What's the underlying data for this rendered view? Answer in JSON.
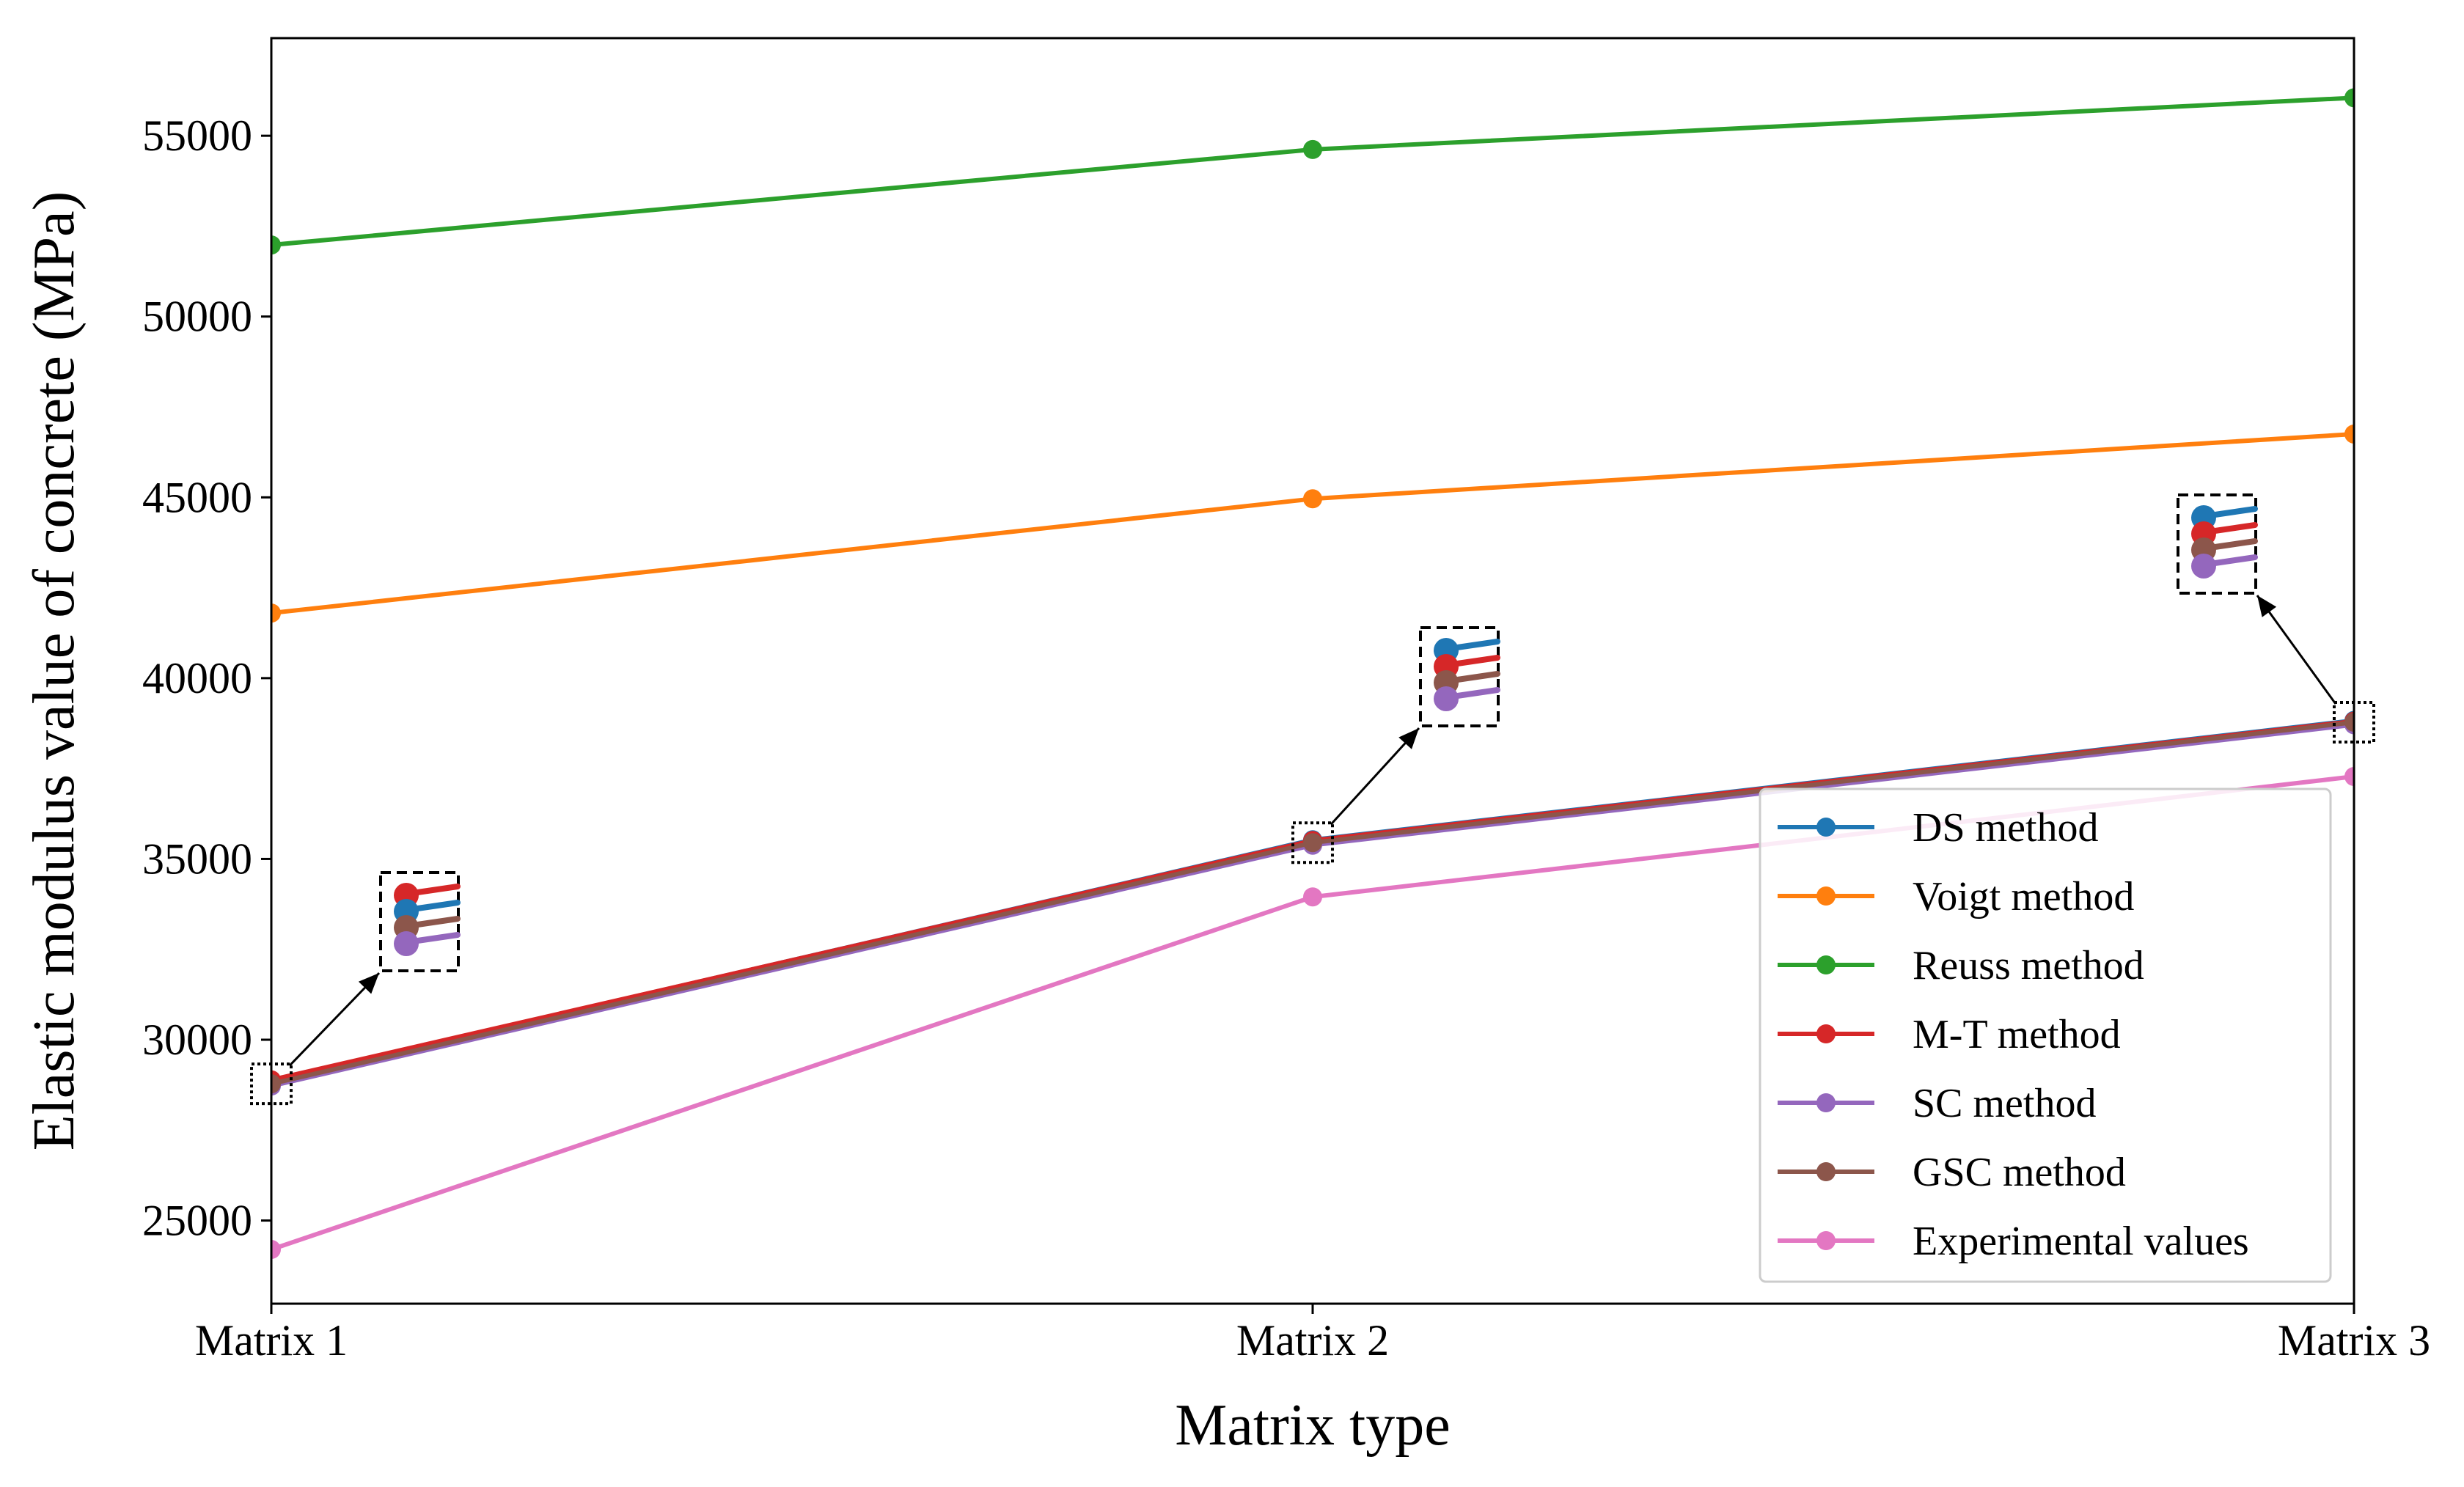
{
  "chart_data": {
    "type": "line",
    "title": "",
    "xlabel": "Matrix type",
    "ylabel": "Elastic modulus value of concrete (MPa)",
    "categories": [
      "Matrix 1",
      "Matrix 2",
      "Matrix 3"
    ],
    "ylim": [
      22700,
      57700
    ],
    "yticks": [
      25000,
      30000,
      35000,
      40000,
      45000,
      50000,
      55000
    ],
    "series": [
      {
        "name": "DS method",
        "color": "#1f77b4",
        "values": [
          28870,
          35530,
          38830
        ]
      },
      {
        "name": "Voigt method",
        "color": "#ff7f0e",
        "values": [
          41800,
          44960,
          46750
        ]
      },
      {
        "name": "Reuss method",
        "color": "#2ca02c",
        "values": [
          51980,
          54620,
          56050
        ]
      },
      {
        "name": "M-T method",
        "color": "#d62728",
        "values": [
          28890,
          35510,
          38810
        ]
      },
      {
        "name": "SC method",
        "color": "#9467bd",
        "values": [
          28720,
          35380,
          38710
        ]
      },
      {
        "name": "GSC method",
        "color": "#8c564b",
        "values": [
          28780,
          35450,
          38780
        ]
      },
      {
        "name": "Experimental values",
        "color": "#e377c2",
        "values": [
          24200,
          33950,
          37280
        ]
      }
    ],
    "legend_position": "lower-right",
    "annotations": "zoomed insets near each matrix point for the closely spaced DS, M-T, SC and GSC curves"
  }
}
